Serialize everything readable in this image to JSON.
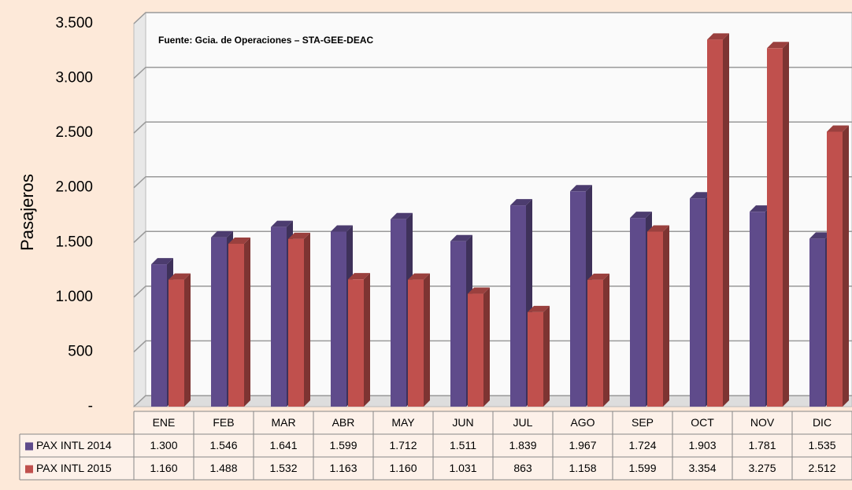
{
  "chart_data": {
    "type": "bar",
    "y_label": "Pasajeros",
    "annotation": "Fuente: Gcia. de Operaciones – STA-GEE-DEAC",
    "categories": [
      "ENE",
      "FEB",
      "MAR",
      "ABR",
      "MAY",
      "JUN",
      "JUL",
      "AGO",
      "SEP",
      "OCT",
      "NOV",
      "DIC"
    ],
    "series": [
      {
        "name": "PAX INTL 2014",
        "color": "#5f4b8b",
        "values": [
          1300,
          1546,
          1641,
          1599,
          1712,
          1511,
          1839,
          1967,
          1724,
          1903,
          1781,
          1535
        ],
        "value_labels": [
          "1.300",
          "1.546",
          "1.641",
          "1.599",
          "1.712",
          "1.511",
          "1.839",
          "1.967",
          "1.724",
          "1.903",
          "1.781",
          "1.535"
        ]
      },
      {
        "name": "PAX INTL 2015",
        "color": "#c0504d",
        "values": [
          1160,
          1488,
          1532,
          1163,
          1160,
          1031,
          863,
          1158,
          1599,
          3354,
          3275,
          2512
        ],
        "value_labels": [
          "1.160",
          "1.488",
          "1.532",
          "1.163",
          "1.160",
          "1.031",
          "863",
          "1.158",
          "1.599",
          "3.354",
          "3.275",
          "2.512"
        ]
      }
    ],
    "ylim": [
      0,
      3500
    ],
    "yticks": [
      {
        "value": 0,
        "label": "-"
      },
      500,
      {
        "value": 1000,
        "label": "1.000"
      },
      {
        "value": 1500,
        "label": "1.500"
      },
      {
        "value": 2000,
        "label": "2.000"
      },
      {
        "value": 2500,
        "label": "2.500"
      },
      {
        "value": 3000,
        "label": "3.000"
      },
      {
        "value": 3500,
        "label": "3.500"
      }
    ],
    "grid": true
  }
}
